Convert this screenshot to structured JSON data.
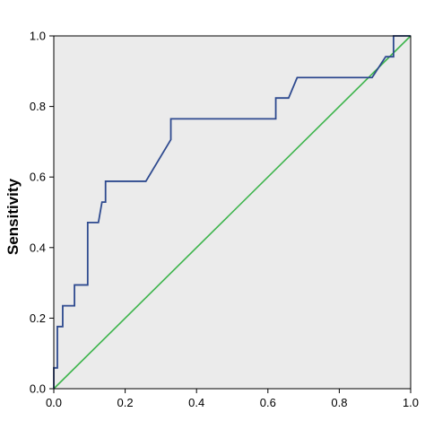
{
  "chart_data": {
    "type": "line",
    "title": "",
    "xlabel": "",
    "ylabel": "Sensitivity",
    "xlim": [
      0,
      1
    ],
    "ylim": [
      0,
      1
    ],
    "x_ticks": [
      "0.0",
      "0.2",
      "0.4",
      "0.6",
      "0.8",
      "1.0"
    ],
    "y_ticks": [
      "0.0",
      "0.2",
      "0.4",
      "0.6",
      "0.8",
      "1.0"
    ],
    "grid": false,
    "legend": "none",
    "colors": {
      "plot_background": "#ebebeb",
      "roc_curve": "#2e4a8f",
      "reference_line": "#3cb44b",
      "frame": "#000000"
    },
    "series": [
      {
        "values": [
          [
            0.0,
            0.0
          ],
          [
            0.0,
            0.059
          ],
          [
            0.01,
            0.059
          ],
          [
            0.01,
            0.176
          ],
          [
            0.025,
            0.176
          ],
          [
            0.025,
            0.235
          ],
          [
            0.058,
            0.235
          ],
          [
            0.058,
            0.294
          ],
          [
            0.095,
            0.294
          ],
          [
            0.095,
            0.471
          ],
          [
            0.125,
            0.471
          ],
          [
            0.135,
            0.529
          ],
          [
            0.145,
            0.529
          ],
          [
            0.145,
            0.588
          ],
          [
            0.258,
            0.588
          ],
          [
            0.328,
            0.706
          ],
          [
            0.328,
            0.765
          ],
          [
            0.622,
            0.765
          ],
          [
            0.622,
            0.824
          ],
          [
            0.658,
            0.824
          ],
          [
            0.682,
            0.882
          ],
          [
            0.892,
            0.882
          ],
          [
            0.93,
            0.941
          ],
          [
            0.952,
            0.941
          ],
          [
            0.952,
            1.0
          ],
          [
            1.0,
            1.0
          ]
        ]
      },
      {
        "values": [
          [
            0,
            0
          ],
          [
            1,
            1
          ]
        ]
      }
    ]
  }
}
